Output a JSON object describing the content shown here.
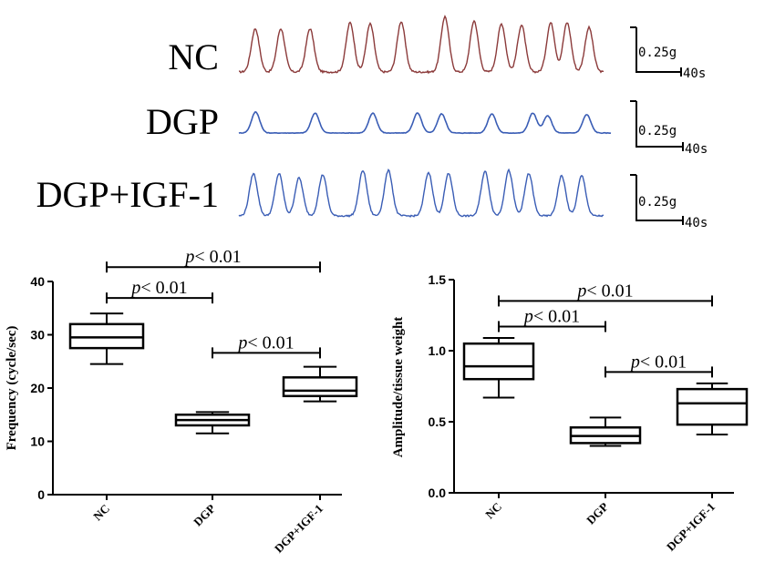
{
  "traces": {
    "rows": [
      {
        "label": "NC",
        "color": "#8B3A3A",
        "peaks": [
          0.045,
          0.115,
          0.195,
          0.305,
          0.36,
          0.445,
          0.565,
          0.645,
          0.72,
          0.775,
          0.855,
          0.9,
          0.96
        ],
        "amps": [
          0.72,
          0.72,
          0.72,
          0.82,
          0.8,
          0.84,
          0.92,
          0.85,
          0.8,
          0.78,
          0.82,
          0.82,
          0.74
        ],
        "baseline_noise": 0.03
      },
      {
        "label": "DGP",
        "color": "#3A5DB5",
        "peaks": [
          0.045,
          0.205,
          0.36,
          0.48,
          0.545,
          0.68,
          0.79,
          0.83,
          0.935
        ],
        "amps": [
          0.55,
          0.52,
          0.52,
          0.52,
          0.5,
          0.5,
          0.52,
          0.45,
          0.48
        ],
        "baseline_noise": 0.015
      },
      {
        "label": "DGP+IGF-1",
        "color": "#3A5DB5",
        "peaks": [
          0.04,
          0.11,
          0.165,
          0.23,
          0.34,
          0.41,
          0.52,
          0.575,
          0.675,
          0.74,
          0.795,
          0.885,
          0.94
        ],
        "amps": [
          0.8,
          0.8,
          0.72,
          0.78,
          0.86,
          0.86,
          0.82,
          0.8,
          0.84,
          0.86,
          0.8,
          0.76,
          0.76
        ],
        "baseline_noise": 0.03
      }
    ],
    "scale_bar": {
      "amplitude_label": "0.25g",
      "time_label": "40s"
    }
  },
  "chart_data": [
    {
      "type": "box",
      "ylabel": "Frequency (cycle/sec)",
      "ylim": [
        0,
        40
      ],
      "yticks": [
        0,
        10,
        20,
        30,
        40
      ],
      "yticks_labels": [
        "0",
        "10",
        "20",
        "30",
        "40"
      ],
      "categories": [
        "NC",
        "DGP",
        "DGP+IGF-1"
      ],
      "boxes": [
        {
          "category": "NC",
          "min": 24.5,
          "q1": 27.5,
          "median": 29.5,
          "q3": 32,
          "max": 34
        },
        {
          "category": "DGP",
          "min": 11.5,
          "q1": 13,
          "median": 14,
          "q3": 15,
          "max": 15.5
        },
        {
          "category": "DGP+IGF-1",
          "min": 17.5,
          "q1": 18.5,
          "median": 19.5,
          "q3": 22,
          "max": 24
        }
      ],
      "annotations": [
        {
          "from": "NC",
          "to": "DGP+IGF-1",
          "italic": "p",
          "text": "< 0.01",
          "y": 42.7
        },
        {
          "from": "NC",
          "to": "DGP",
          "italic": "p",
          "text": "< 0.01",
          "y": 36.9
        },
        {
          "from": "DGP",
          "to": "DGP+IGF-1",
          "italic": "p",
          "text": "< 0.01",
          "y": 26.6
        }
      ]
    },
    {
      "type": "box",
      "ylabel": "Amplitude/tissue weight",
      "ylim": [
        0,
        1.5
      ],
      "yticks": [
        0,
        0.5,
        1.0,
        1.5
      ],
      "yticks_labels": [
        "0.0",
        "0.5",
        "1.0",
        "1.5"
      ],
      "categories": [
        "NC",
        "DGP",
        "DGP+IGF-1"
      ],
      "boxes": [
        {
          "category": "NC",
          "min": 0.67,
          "q1": 0.8,
          "median": 0.89,
          "q3": 1.05,
          "max": 1.09
        },
        {
          "category": "DGP",
          "min": 0.33,
          "q1": 0.35,
          "median": 0.4,
          "q3": 0.46,
          "max": 0.53
        },
        {
          "category": "DGP+IGF-1",
          "min": 0.41,
          "q1": 0.48,
          "median": 0.63,
          "q3": 0.73,
          "max": 0.77
        }
      ],
      "annotations": [
        {
          "from": "NC",
          "to": "DGP+IGF-1",
          "italic": "p",
          "text": "< 0.01",
          "y": 1.35
        },
        {
          "from": "NC",
          "to": "DGP",
          "italic": "p",
          "text": "< 0.01",
          "y": 1.17
        },
        {
          "from": "DGP",
          "to": "DGP+IGF-1",
          "italic": "p",
          "text": "< 0.01",
          "y": 0.85
        }
      ]
    }
  ]
}
